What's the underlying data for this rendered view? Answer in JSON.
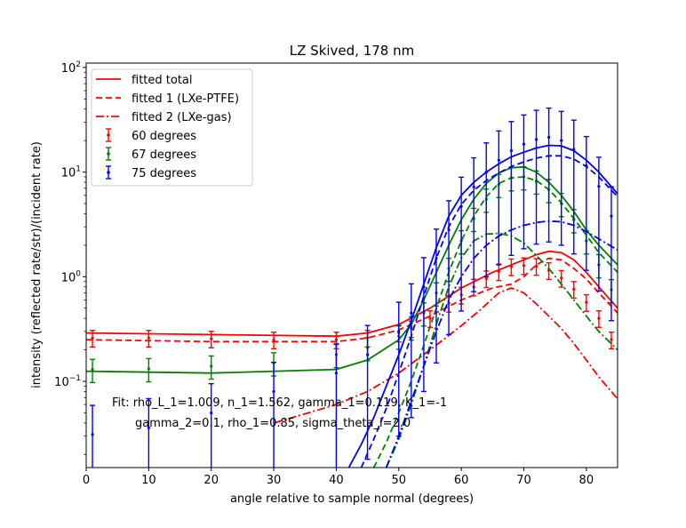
{
  "chart_data": {
    "type": "scatter",
    "title": "LZ Skived, 178 nm",
    "xlabel": "angle relative to sample normal (degrees)",
    "ylabel": "intensity (reflected rate/str)/(incident rate)",
    "xlim": [
      0,
      85
    ],
    "ylim": [
      0.015,
      110
    ],
    "yscale": "log",
    "grid": false,
    "legend_position": "upper-left",
    "x_ticks": [
      0,
      10,
      20,
      30,
      40,
      50,
      60,
      70,
      80
    ],
    "y_ticks": [
      {
        "value": 0.1,
        "base": "10",
        "exp": "−1"
      },
      {
        "value": 1,
        "base": "10",
        "exp": "0"
      },
      {
        "value": 10,
        "base": "10",
        "exp": "1"
      },
      {
        "value": 100,
        "base": "10",
        "exp": "2"
      }
    ],
    "annotations": [
      "Fit: rho_L_1=1.009, n_1=1.562, gamma_1=0.119, K_1=-1",
      "gamma_2=0.1, rho_1=0.85, sigma_theta_i=2.0"
    ],
    "legend": [
      {
        "label": "fitted total",
        "style": "solid",
        "color": "#ff0000",
        "kind": "line"
      },
      {
        "label": "fitted 1 (LXe-PTFE)",
        "style": "dashed",
        "color": "#ff0000",
        "kind": "line"
      },
      {
        "label": "fitted 2 (LXe-gas)",
        "style": "dashdot",
        "color": "#ff0000",
        "kind": "line"
      },
      {
        "label": "60 degrees",
        "color": "#ff0000",
        "kind": "errorbar"
      },
      {
        "label": "67 degrees",
        "color": "#008000",
        "kind": "errorbar"
      },
      {
        "label": "75 degrees",
        "color": "#0000ff",
        "kind": "errorbar"
      }
    ],
    "series": [
      {
        "name": "60 degrees",
        "color": "#ff0000",
        "data_x": [
          1,
          10,
          20,
          30,
          40,
          45,
          50,
          52,
          55,
          58,
          60,
          62,
          64,
          66,
          68,
          70,
          72,
          74,
          76,
          78,
          80,
          82,
          84
        ],
        "data_y": [
          0.26,
          0.26,
          0.255,
          0.25,
          0.25,
          0.26,
          0.29,
          0.32,
          0.4,
          0.56,
          0.67,
          0.8,
          0.96,
          1.12,
          1.25,
          1.28,
          1.26,
          1.15,
          0.97,
          0.76,
          0.57,
          0.4,
          0.25
        ],
        "err_frac": 0.18,
        "fit_total_x": [
          0,
          20,
          40,
          45,
          50,
          55,
          60,
          65,
          70,
          72,
          74,
          76,
          78,
          80,
          82,
          85
        ],
        "fit_total_y": [
          0.29,
          0.28,
          0.27,
          0.29,
          0.35,
          0.5,
          0.78,
          1.1,
          1.45,
          1.62,
          1.75,
          1.7,
          1.45,
          1.1,
          0.8,
          0.5
        ],
        "fit_1_x": [
          0,
          20,
          40,
          45,
          50,
          55,
          60,
          65,
          68,
          70,
          72,
          74,
          76,
          78,
          80,
          82,
          85
        ],
        "fit_1_y": [
          0.25,
          0.24,
          0.24,
          0.26,
          0.31,
          0.42,
          0.6,
          0.78,
          0.85,
          1.0,
          1.3,
          1.5,
          1.45,
          1.2,
          0.95,
          0.7,
          0.45
        ],
        "fit_2_x": [
          30,
          40,
          45,
          50,
          55,
          60,
          63,
          66,
          68,
          70,
          72,
          74,
          76,
          78,
          80,
          82,
          85
        ],
        "fit_2_y": [
          0.04,
          0.06,
          0.08,
          0.12,
          0.2,
          0.34,
          0.48,
          0.7,
          0.78,
          0.7,
          0.55,
          0.42,
          0.32,
          0.23,
          0.16,
          0.11,
          0.068
        ]
      },
      {
        "name": "67 degrees",
        "color": "#008000",
        "data_x": [
          1,
          10,
          20,
          30,
          40,
          45,
          50,
          52,
          54,
          56,
          58,
          60,
          62,
          64,
          66,
          68,
          70,
          72,
          74,
          76,
          78,
          80,
          82,
          84
        ],
        "data_y": [
          0.13,
          0.132,
          0.14,
          0.15,
          0.18,
          0.21,
          0.27,
          0.33,
          0.45,
          0.7,
          1.2,
          2.2,
          3.6,
          5.5,
          7.6,
          8.8,
          9.0,
          8.2,
          6.8,
          5.0,
          3.5,
          2.2,
          1.3,
          0.75
        ],
        "err_frac": 0.25,
        "fit_total_x": [
          0,
          20,
          40,
          45,
          50,
          52,
          54,
          56,
          58,
          60,
          62,
          64,
          66,
          68,
          70,
          72,
          74,
          76,
          78,
          80,
          82,
          85
        ],
        "fit_total_y": [
          0.125,
          0.12,
          0.13,
          0.16,
          0.25,
          0.35,
          0.6,
          1.1,
          2.0,
          3.5,
          5.5,
          7.8,
          9.8,
          11.0,
          11.2,
          10.0,
          8.0,
          6.0,
          4.2,
          2.8,
          2.0,
          1.3
        ],
        "fit_1_x": [
          46,
          48,
          50,
          52,
          54,
          56,
          58,
          60,
          62,
          64,
          66,
          68,
          70,
          72,
          74,
          76,
          78,
          80,
          82,
          85
        ],
        "fit_1_y": [
          0.015,
          0.026,
          0.05,
          0.1,
          0.22,
          0.5,
          1.1,
          2.2,
          3.8,
          5.8,
          7.8,
          8.8,
          9.0,
          8.3,
          6.8,
          5.1,
          3.6,
          2.5,
          1.7,
          1.1
        ],
        "fit_2_x": [
          48,
          50,
          52,
          54,
          56,
          58,
          60,
          62,
          64,
          66,
          68,
          70,
          72,
          74,
          76,
          78,
          80,
          82,
          85
        ],
        "fit_2_y": [
          0.015,
          0.028,
          0.06,
          0.14,
          0.35,
          0.8,
          1.5,
          2.2,
          2.55,
          2.6,
          2.45,
          2.1,
          1.6,
          1.2,
          0.85,
          0.6,
          0.42,
          0.3,
          0.2
        ]
      },
      {
        "name": "75 degrees",
        "color": "#0000ff",
        "data_x": [
          1,
          10,
          20,
          30,
          40,
          45,
          50,
          52,
          54,
          56,
          58,
          60,
          62,
          64,
          66,
          68,
          70,
          72,
          74,
          76,
          78,
          80,
          82,
          84
        ],
        "data_y": [
          0.031,
          0.036,
          0.05,
          0.08,
          0.12,
          0.18,
          0.3,
          0.45,
          0.8,
          1.5,
          2.8,
          4.7,
          7.2,
          10.0,
          13.0,
          16.0,
          18.5,
          20.5,
          21.5,
          20.0,
          16.5,
          11.5,
          7.3,
          3.8
        ],
        "err_frac": 0.9,
        "fit_total_x": [
          42,
          44,
          46,
          48,
          50,
          52,
          54,
          56,
          58,
          60,
          62,
          64,
          66,
          68,
          70,
          72,
          74,
          76,
          78,
          80,
          82,
          85
        ],
        "fit_total_y": [
          0.015,
          0.025,
          0.045,
          0.09,
          0.18,
          0.38,
          0.85,
          1.9,
          3.8,
          6.0,
          8.0,
          10.0,
          12.0,
          14.0,
          15.5,
          17.0,
          18.0,
          17.8,
          16.0,
          13.0,
          10.0,
          6.2
        ],
        "fit_1_x": [
          44,
          46,
          48,
          50,
          52,
          54,
          56,
          58,
          60,
          62,
          64,
          66,
          68,
          70,
          72,
          74,
          76,
          78,
          80,
          82,
          85
        ],
        "fit_1_y": [
          0.015,
          0.028,
          0.055,
          0.12,
          0.27,
          0.65,
          1.5,
          3.0,
          4.9,
          6.7,
          8.3,
          9.8,
          11.3,
          12.5,
          13.6,
          14.3,
          14.3,
          13.3,
          11.3,
          9.0,
          5.8
        ],
        "fit_2_x": [
          48,
          50,
          52,
          54,
          56,
          58,
          60,
          62,
          64,
          66,
          68,
          70,
          72,
          74,
          76,
          78,
          80,
          82,
          85
        ],
        "fit_2_y": [
          0.015,
          0.03,
          0.065,
          0.14,
          0.3,
          0.6,
          1.0,
          1.5,
          2.0,
          2.45,
          2.8,
          3.1,
          3.3,
          3.4,
          3.35,
          3.1,
          2.7,
          2.3,
          1.8
        ]
      }
    ]
  }
}
